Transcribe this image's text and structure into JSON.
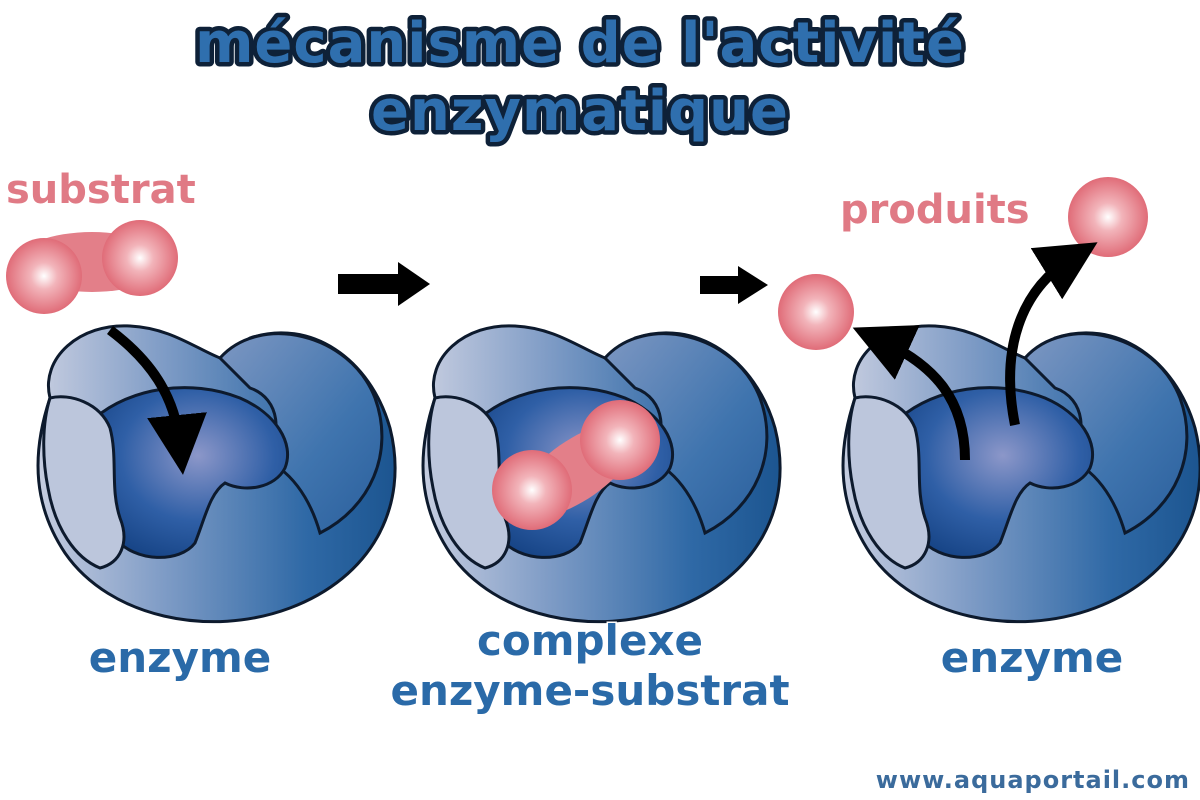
{
  "title": {
    "line1": "mécanisme de l'activité",
    "line2": "enzymatique"
  },
  "labels": {
    "substrate": "substrat",
    "products": "produits",
    "enzyme_left": "enzyme",
    "complex_line1": "complexe",
    "complex_line2": "enzyme-substrat",
    "enzyme_right": "enzyme"
  },
  "footer": {
    "url": "www.aquaportail.com"
  },
  "colors": {
    "enzyme_dark": "#1f5a98",
    "enzyme_light": "#b8c4da",
    "substrate": "#e37f89",
    "arrow": "#000000",
    "title_fill": "#2f6fae"
  }
}
